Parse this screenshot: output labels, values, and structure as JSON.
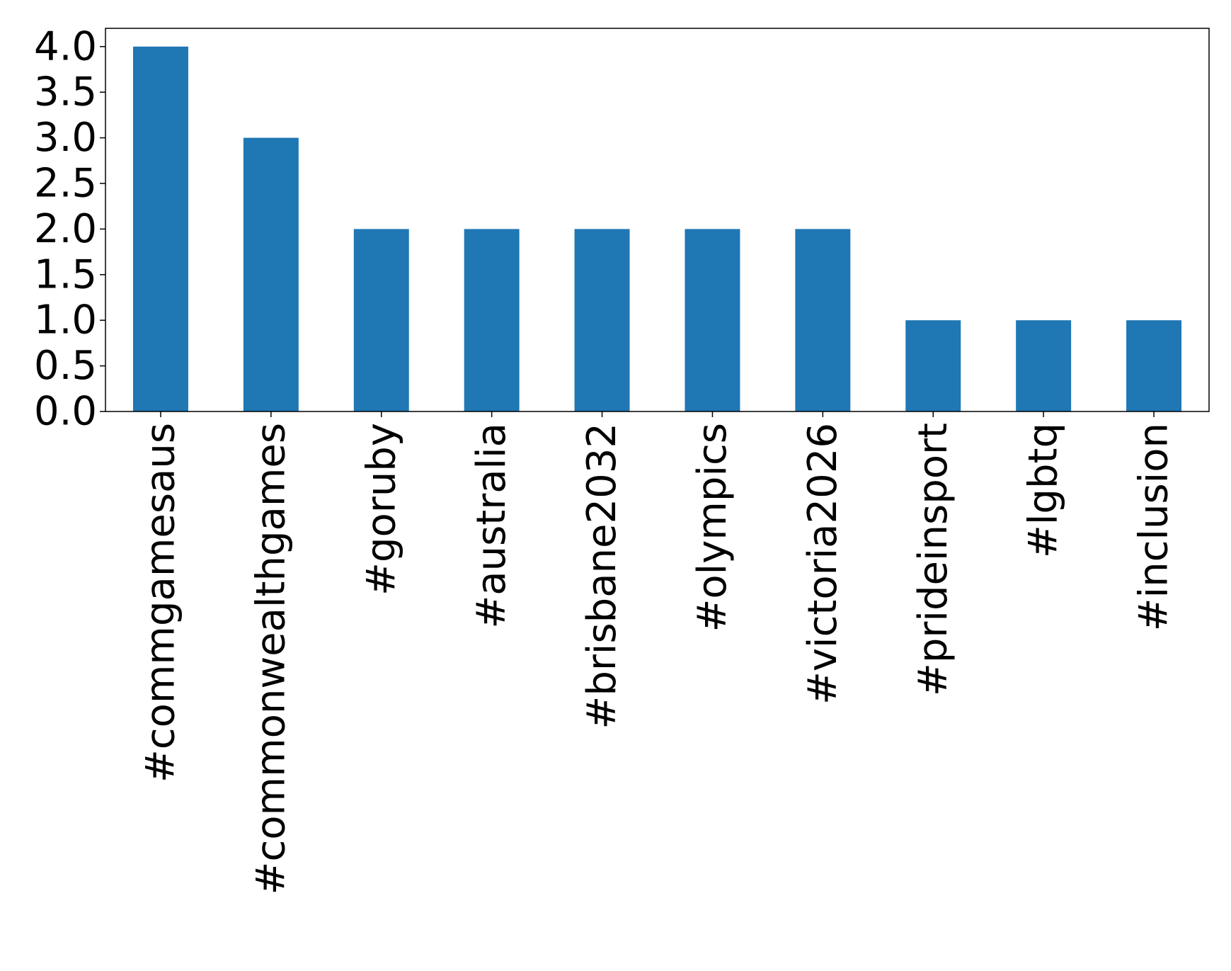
{
  "chart_data": {
    "type": "bar",
    "categories": [
      "#commgamesaus",
      "#commonwealthgames",
      "#goruby",
      "#australia",
      "#brisbane2032",
      "#olympics",
      "#victoria2026",
      "#prideinsport",
      "#lgbtq",
      "#inclusion"
    ],
    "values": [
      4,
      3,
      2,
      2,
      2,
      2,
      2,
      1,
      1,
      1
    ],
    "color": "#1f77b4",
    "ylim": [
      0,
      4.2
    ],
    "yticks": [
      {
        "value": 0,
        "label": "0.0"
      },
      0.5,
      {
        "value": 1,
        "label": "1.0"
      },
      1.5,
      {
        "value": 2,
        "label": "2.0"
      },
      2.5,
      {
        "value": 3,
        "label": "3.0"
      },
      3.5,
      {
        "value": 4,
        "label": "4.0"
      }
    ],
    "grid": false
  }
}
